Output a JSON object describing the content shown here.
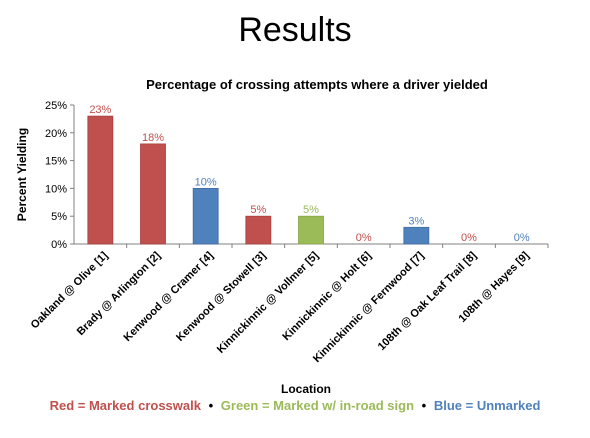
{
  "slide": {
    "title": "Results"
  },
  "legend": {
    "red": "Red = Marked crosswalk",
    "green": "Green = Marked w/ in-road sign",
    "blue": "Blue = Unmarked",
    "separator": "•"
  },
  "colors": {
    "red": "#C0504D",
    "green": "#9BBB59",
    "blue": "#4F81BD"
  },
  "chart_data": {
    "type": "bar",
    "title": "Percentage of crossing attempts where a driver yielded",
    "xlabel": "Location",
    "ylabel": "Percent Yielding",
    "ylim": [
      0,
      25
    ],
    "yticks": [
      "0%",
      "5%",
      "10%",
      "15%",
      "20%",
      "25%"
    ],
    "grid": false,
    "categories": [
      "Oakland @ Olive [1]",
      "Brady @ Arlington [2]",
      "Kenwood @ Cramer [4]",
      "Kenwood @ Stowell [3]",
      "Kinnickinnic @ Vollmer [5]",
      "Kinnickinnic @ Holt [6]",
      "Kinnickinnic @ Fernwood [7]",
      "108th @ Oak Leaf Trail [8]",
      "108th @ Hayes [9]"
    ],
    "values": [
      23,
      18,
      10,
      5,
      5,
      0,
      3,
      0,
      0
    ],
    "data_labels": [
      "23%",
      "18%",
      "10%",
      "5%",
      "5%",
      "0%",
      "3%",
      "0%",
      "0%"
    ],
    "bar_colors": [
      "red",
      "red",
      "blue",
      "red",
      "green",
      "red",
      "blue",
      "red",
      "blue"
    ]
  }
}
